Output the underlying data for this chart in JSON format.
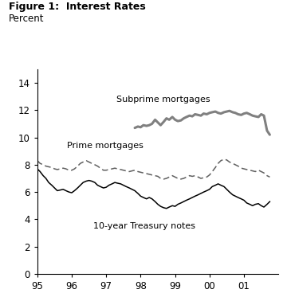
{
  "title_bold": "Figure 1:  Interest Rates",
  "ylabel": "Percent",
  "xlim": [
    1995.0,
    2002.0
  ],
  "ylim": [
    0,
    15
  ],
  "yticks": [
    0,
    2,
    4,
    6,
    8,
    10,
    12,
    14
  ],
  "xtick_labels": [
    "95",
    "96",
    "97",
    "98",
    "99",
    "00",
    "01"
  ],
  "xtick_positions": [
    1995,
    1996,
    1997,
    1998,
    1999,
    2000,
    2001
  ],
  "background_color": "#ffffff",
  "subprime_color": "#808080",
  "prime_color": "#606060",
  "treasury_color": "#000000",
  "subprime_label": "Subprime mortgages",
  "prime_label": "Prime mortgages",
  "treasury_label": "10-year Treasury notes",
  "subprime_x": [
    1997.83,
    1997.92,
    1998.0,
    1998.08,
    1998.17,
    1998.25,
    1998.33,
    1998.42,
    1998.5,
    1998.58,
    1998.67,
    1998.75,
    1998.83,
    1998.92,
    1999.0,
    1999.08,
    1999.17,
    1999.25,
    1999.33,
    1999.42,
    1999.5,
    1999.58,
    1999.67,
    1999.75,
    1999.83,
    1999.92,
    2000.0,
    2000.08,
    2000.17,
    2000.25,
    2000.33,
    2000.42,
    2000.5,
    2000.58,
    2000.67,
    2000.75,
    2000.83,
    2000.92,
    2001.0,
    2001.08,
    2001.17,
    2001.25,
    2001.33,
    2001.42,
    2001.5,
    2001.58,
    2001.67,
    2001.75
  ],
  "subprime_y": [
    10.7,
    10.8,
    10.75,
    10.9,
    10.85,
    10.9,
    11.0,
    11.3,
    11.1,
    10.9,
    11.15,
    11.4,
    11.3,
    11.5,
    11.3,
    11.2,
    11.25,
    11.4,
    11.5,
    11.6,
    11.55,
    11.7,
    11.65,
    11.6,
    11.75,
    11.7,
    11.8,
    11.85,
    11.9,
    11.8,
    11.75,
    11.85,
    11.9,
    11.95,
    11.85,
    11.8,
    11.7,
    11.65,
    11.75,
    11.8,
    11.7,
    11.6,
    11.55,
    11.5,
    11.7,
    11.6,
    10.5,
    10.2
  ],
  "prime_x": [
    1995.0,
    1995.08,
    1995.17,
    1995.25,
    1995.33,
    1995.42,
    1995.5,
    1995.58,
    1995.67,
    1995.75,
    1995.83,
    1995.92,
    1996.0,
    1996.08,
    1996.17,
    1996.25,
    1996.33,
    1996.42,
    1996.5,
    1996.58,
    1996.67,
    1996.75,
    1996.83,
    1996.92,
    1997.0,
    1997.08,
    1997.17,
    1997.25,
    1997.33,
    1997.42,
    1997.5,
    1997.58,
    1997.67,
    1997.75,
    1997.83,
    1997.92,
    1998.0,
    1998.08,
    1998.17,
    1998.25,
    1998.33,
    1998.42,
    1998.5,
    1998.58,
    1998.67,
    1998.75,
    1998.83,
    1998.92,
    1999.0,
    1999.08,
    1999.17,
    1999.25,
    1999.33,
    1999.42,
    1999.5,
    1999.58,
    1999.67,
    1999.75,
    1999.83,
    1999.92,
    2000.0,
    2000.08,
    2000.17,
    2000.25,
    2000.33,
    2000.42,
    2000.5,
    2000.58,
    2000.67,
    2000.75,
    2000.83,
    2000.92,
    2001.0,
    2001.08,
    2001.17,
    2001.25,
    2001.33,
    2001.42,
    2001.5,
    2001.58,
    2001.67,
    2001.75
  ],
  "prime_y": [
    8.3,
    8.1,
    8.0,
    7.9,
    7.85,
    7.8,
    7.7,
    7.65,
    7.7,
    7.75,
    7.7,
    7.6,
    7.6,
    7.7,
    7.9,
    8.1,
    8.2,
    8.3,
    8.2,
    8.1,
    8.0,
    7.9,
    7.75,
    7.6,
    7.6,
    7.65,
    7.7,
    7.75,
    7.7,
    7.65,
    7.6,
    7.55,
    7.5,
    7.55,
    7.6,
    7.5,
    7.45,
    7.4,
    7.35,
    7.3,
    7.25,
    7.2,
    7.15,
    7.0,
    6.95,
    7.0,
    7.1,
    7.2,
    7.1,
    7.0,
    6.95,
    7.0,
    7.1,
    7.2,
    7.15,
    7.2,
    7.1,
    7.0,
    7.05,
    7.1,
    7.25,
    7.5,
    7.8,
    8.1,
    8.3,
    8.4,
    8.35,
    8.2,
    8.1,
    8.0,
    7.9,
    7.75,
    7.7,
    7.65,
    7.6,
    7.55,
    7.5,
    7.6,
    7.5,
    7.4,
    7.2,
    7.1
  ],
  "treasury_x": [
    1995.0,
    1995.08,
    1995.17,
    1995.25,
    1995.33,
    1995.42,
    1995.5,
    1995.58,
    1995.67,
    1995.75,
    1995.83,
    1995.92,
    1996.0,
    1996.08,
    1996.17,
    1996.25,
    1996.33,
    1996.42,
    1996.5,
    1996.58,
    1996.67,
    1996.75,
    1996.83,
    1996.92,
    1997.0,
    1997.08,
    1997.17,
    1997.25,
    1997.33,
    1997.42,
    1997.5,
    1997.58,
    1997.67,
    1997.75,
    1997.83,
    1997.92,
    1998.0,
    1998.08,
    1998.17,
    1998.25,
    1998.33,
    1998.42,
    1998.5,
    1998.58,
    1998.67,
    1998.75,
    1998.83,
    1998.92,
    1999.0,
    1999.08,
    1999.17,
    1999.25,
    1999.33,
    1999.42,
    1999.5,
    1999.58,
    1999.67,
    1999.75,
    1999.83,
    1999.92,
    2000.0,
    2000.08,
    2000.17,
    2000.25,
    2000.33,
    2000.42,
    2000.5,
    2000.58,
    2000.67,
    2000.75,
    2000.83,
    2000.92,
    2001.0,
    2001.08,
    2001.17,
    2001.25,
    2001.33,
    2001.42,
    2001.5,
    2001.58,
    2001.67,
    2001.75
  ],
  "treasury_y": [
    7.7,
    7.5,
    7.2,
    7.0,
    6.7,
    6.5,
    6.3,
    6.1,
    6.15,
    6.2,
    6.1,
    6.0,
    5.95,
    6.1,
    6.3,
    6.5,
    6.7,
    6.8,
    6.85,
    6.8,
    6.7,
    6.5,
    6.4,
    6.3,
    6.35,
    6.5,
    6.6,
    6.7,
    6.65,
    6.6,
    6.5,
    6.4,
    6.3,
    6.2,
    6.1,
    5.9,
    5.7,
    5.6,
    5.5,
    5.6,
    5.5,
    5.3,
    5.1,
    4.95,
    4.85,
    4.8,
    4.9,
    5.0,
    4.95,
    5.1,
    5.2,
    5.3,
    5.4,
    5.5,
    5.6,
    5.7,
    5.8,
    5.9,
    6.0,
    6.1,
    6.2,
    6.4,
    6.5,
    6.6,
    6.5,
    6.4,
    6.2,
    6.0,
    5.8,
    5.7,
    5.6,
    5.5,
    5.4,
    5.2,
    5.1,
    5.0,
    5.1,
    5.15,
    5.0,
    4.9,
    5.1,
    5.3
  ]
}
